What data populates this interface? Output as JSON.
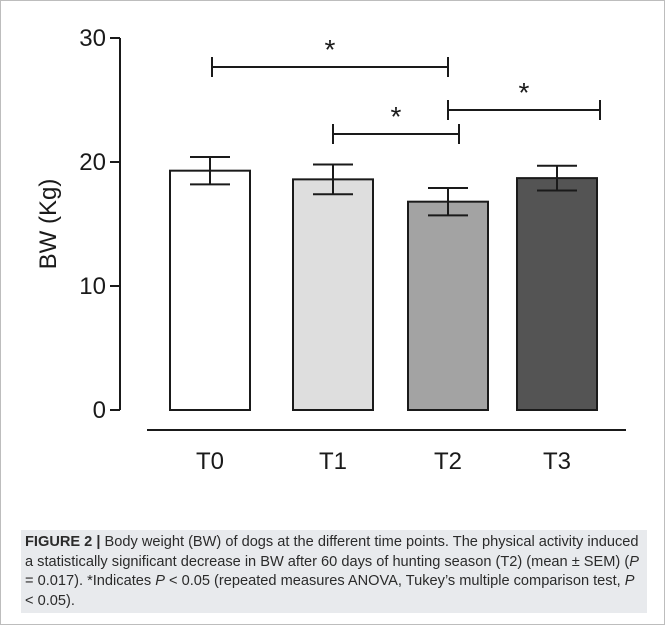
{
  "chart_data": {
    "type": "bar",
    "categories": [
      "T0",
      "T1",
      "T2",
      "T3"
    ],
    "values": [
      19.3,
      18.6,
      16.8,
      18.7
    ],
    "errors": [
      1.1,
      1.2,
      1.1,
      1.0
    ],
    "bar_colors": [
      "#ffffff",
      "#dedede",
      "#a3a3a3",
      "#545454"
    ],
    "ylabel": "BW (Kg)",
    "ylim": [
      0,
      30
    ],
    "yticks": [
      0,
      10,
      20,
      30
    ],
    "significance": [
      {
        "from": "T0",
        "to": "T2",
        "label": "*"
      },
      {
        "from": "T1",
        "to": "T2",
        "label": "*"
      },
      {
        "from": "T2",
        "to": "T3",
        "label": "*"
      }
    ]
  },
  "caption": {
    "figure_label": "FIGURE 2 |",
    "parts": [
      {
        "t": " Body weight (BW) of dogs at the different time points. The physical activity induced a statistically significant decrease in BW after 60 days of hunting season (T2) (mean ± SEM) (",
        "i": false
      },
      {
        "t": "P",
        "i": true
      },
      {
        "t": " = 0.017). *Indicates ",
        "i": false
      },
      {
        "t": "P",
        "i": true
      },
      {
        "t": " < 0.05 (repeated measures ANOVA, Tukey’s multiple comparison test, ",
        "i": false
      },
      {
        "t": "P",
        "i": true
      },
      {
        "t": " < 0.05).",
        "i": false
      }
    ]
  }
}
